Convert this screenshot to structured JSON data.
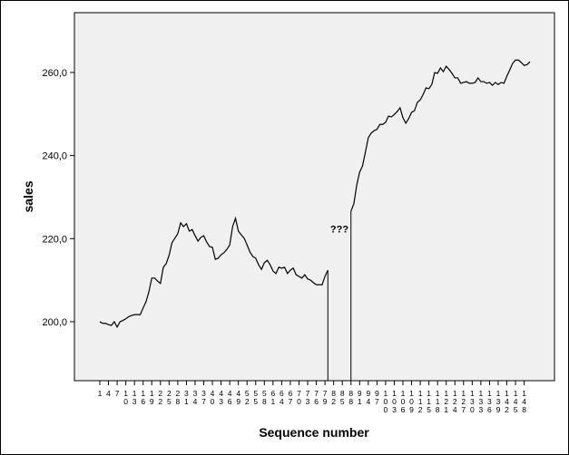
{
  "chart_data": {
    "type": "line",
    "x_label": "Sequence number",
    "y_label": "sales",
    "annotation": "???",
    "color": "#000000",
    "annotation_color": "#cc0000",
    "background": "#f0f0f0",
    "xlim": [
      -7.8,
      158.5
    ],
    "ylim": [
      185.8,
      274.4
    ],
    "yticks": [
      {
        "value": 200,
        "label": "200,0"
      },
      {
        "value": 220,
        "label": "220,0"
      },
      {
        "value": 240,
        "label": "240,0"
      },
      {
        "value": 260,
        "label": "260,0"
      }
    ],
    "xticks": [
      1,
      4,
      7,
      10,
      13,
      16,
      19,
      22,
      25,
      28,
      31,
      34,
      37,
      40,
      43,
      46,
      49,
      52,
      55,
      58,
      61,
      64,
      67,
      70,
      73,
      76,
      79,
      82,
      85,
      88,
      91,
      94,
      97,
      100,
      103,
      106,
      109,
      112,
      115,
      118,
      121,
      124,
      127,
      130,
      133,
      136,
      139,
      142,
      145,
      148
    ],
    "x": [
      1,
      2,
      3,
      4,
      5,
      6,
      7,
      8,
      9,
      10,
      11,
      12,
      13,
      14,
      15,
      16,
      17,
      18,
      19,
      20,
      21,
      22,
      23,
      24,
      25,
      26,
      27,
      28,
      29,
      30,
      31,
      32,
      33,
      34,
      35,
      36,
      37,
      38,
      39,
      40,
      41,
      42,
      43,
      44,
      45,
      46,
      47,
      48,
      49,
      50,
      51,
      52,
      53,
      54,
      55,
      56,
      57,
      58,
      59,
      60,
      61,
      62,
      63,
      64,
      65,
      66,
      67,
      68,
      69,
      70,
      71,
      72,
      73,
      74,
      75,
      76,
      77,
      78,
      79,
      80,
      81,
      82,
      83,
      84,
      85,
      86,
      87,
      88,
      89,
      90,
      91,
      92,
      93,
      94,
      95,
      96,
      97,
      98,
      99,
      100,
      101,
      102,
      103,
      104,
      105,
      106,
      107,
      108,
      109,
      110,
      111,
      112,
      113,
      114,
      115,
      116,
      117,
      118,
      119,
      120,
      121,
      122,
      123,
      124,
      125,
      126,
      127,
      128,
      129,
      130,
      131,
      132,
      133,
      134,
      135,
      136,
      137,
      138,
      139,
      140,
      141,
      142,
      143,
      144,
      145,
      146,
      147,
      148,
      149,
      150
    ],
    "values": [
      200,
      199.6,
      199.6,
      199.3,
      199.1,
      200,
      198.7,
      200,
      200.3,
      200.7,
      201.2,
      201.5,
      201.7,
      201.7,
      201.7,
      203.3,
      204.8,
      207.2,
      210.5,
      210.5,
      209.8,
      209.2,
      213.1,
      214,
      216,
      219,
      220.1,
      221.2,
      223.8,
      222.9,
      223.6,
      221.8,
      222.2,
      220.7,
      219.4,
      220.3,
      220.7,
      219.2,
      218.1,
      217.9,
      215,
      215.3,
      216.1,
      216.6,
      217.4,
      218.5,
      222.9,
      224.9,
      221.8,
      220.9,
      220.1,
      218.5,
      216.8,
      215.7,
      215.3,
      213.7,
      212.6,
      214.2,
      214.8,
      213.7,
      212.2,
      211.6,
      213.1,
      212.9,
      213.1,
      211.6,
      212.4,
      212.9,
      211.3,
      210.9,
      210.5,
      211.3,
      210.3,
      210,
      209.4,
      208.9,
      208.9,
      208.9,
      210.9,
      212.4,
      null,
      null,
      null,
      null,
      null,
      null,
      null,
      226.6,
      228.4,
      232.9,
      236,
      237.5,
      240.8,
      244.3,
      245.4,
      246,
      246.3,
      247.5,
      247.5,
      248,
      249.5,
      249.3,
      249.9,
      250.6,
      251.5,
      249.1,
      247.8,
      248.9,
      250.4,
      250.8,
      252.8,
      253.4,
      254.7,
      256.3,
      256.1,
      257.1,
      260,
      259.8,
      261.1,
      260.2,
      261.5,
      260.7,
      259.8,
      258.7,
      258.7,
      257.4,
      257.6,
      257.8,
      257.4,
      257.4,
      257.6,
      258.7,
      257.8,
      257.8,
      257.4,
      257.6,
      256.9,
      257.6,
      257.1,
      257.6,
      257.4,
      259.1,
      260.6,
      262.2,
      263,
      263,
      262.4,
      261.7,
      261.9,
      262.6
    ]
  }
}
